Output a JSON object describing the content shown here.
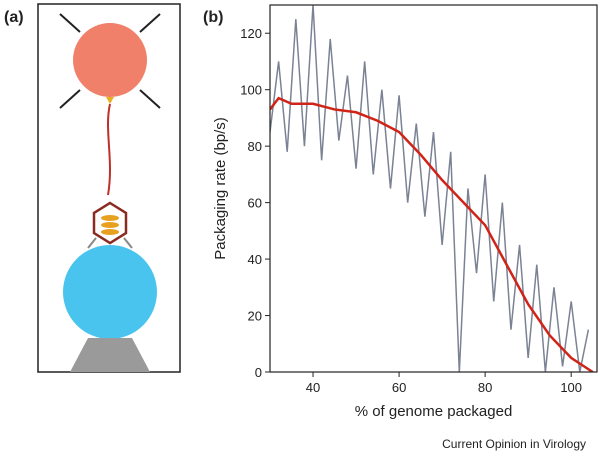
{
  "figure": {
    "panel_a": "(a)",
    "panel_b": "(b)",
    "credit": "Current Opinion in Virology"
  },
  "chart_data": {
    "type": "line",
    "x_label": "% of genome packaged",
    "y_label": "Packaging rate (bp/s)",
    "xlim": [
      30,
      106
    ],
    "ylim": [
      0,
      130
    ],
    "xticks": [
      40,
      60,
      80,
      100
    ],
    "yticks": [
      0,
      20,
      40,
      60,
      80,
      100,
      120
    ],
    "series": [
      {
        "color": "#7a8294",
        "x": [
          30,
          32,
          34,
          36,
          38,
          40,
          42,
          44,
          46,
          48,
          50,
          52,
          54,
          56,
          58,
          60,
          62,
          64,
          66,
          68,
          70,
          72,
          74,
          76,
          78,
          80,
          82,
          84,
          86,
          88,
          90,
          92,
          94,
          96,
          98,
          100,
          102,
          104
        ],
        "values": [
          85,
          110,
          78,
          125,
          80,
          130,
          75,
          118,
          82,
          105,
          72,
          110,
          70,
          100,
          65,
          98,
          60,
          88,
          55,
          85,
          45,
          78,
          0,
          65,
          35,
          70,
          25,
          60,
          15,
          45,
          5,
          38,
          0,
          30,
          2,
          25,
          0,
          15
        ]
      },
      {
        "color": "#d02418",
        "x": [
          30,
          32,
          35,
          40,
          45,
          50,
          55,
          60,
          65,
          70,
          75,
          80,
          85,
          90,
          95,
          100,
          105
        ],
        "values": [
          93,
          97,
          95,
          95,
          93,
          92,
          89,
          85,
          77,
          68,
          60,
          52,
          38,
          24,
          13,
          5,
          0
        ]
      }
    ]
  }
}
